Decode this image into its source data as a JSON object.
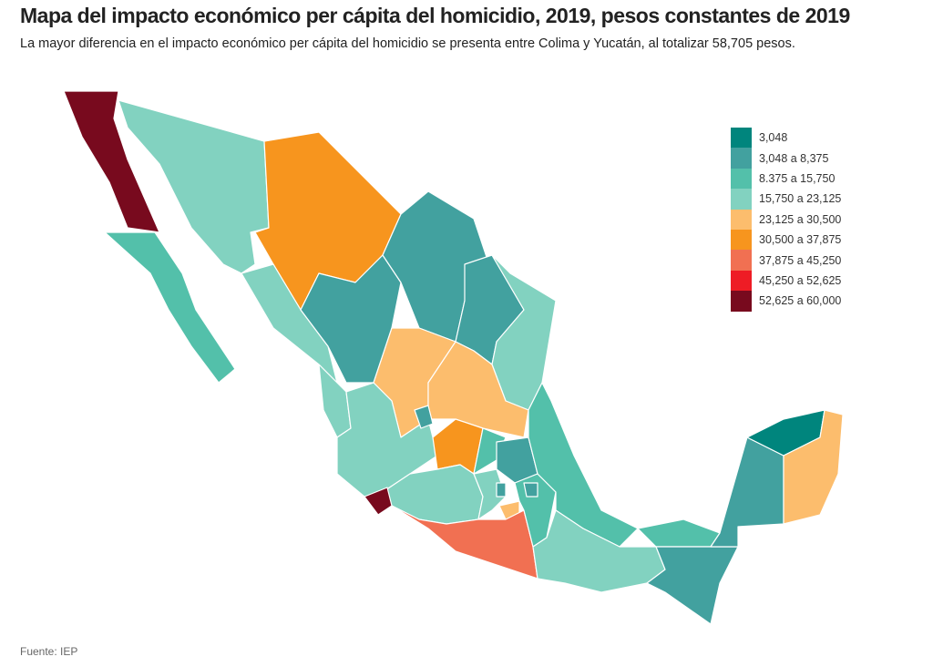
{
  "title": "Mapa del impacto económico per cápita del homicidio, 2019, pesos constantes de 2019",
  "subtitle": "La mayor diferencia en el impacto económico per cápita del homicidio se presenta entre Colima y Yucatán, al totalizar 58,705 pesos.",
  "source": "Fuente: IEP",
  "legend": [
    {
      "label": "3,048",
      "color": "#00857d"
    },
    {
      "label": "3,048 a 8,375",
      "color": "#42a19f"
    },
    {
      "label": "8.375 a 15,750",
      "color": "#53c0aa"
    },
    {
      "label": "15,750 a 23,125",
      "color": "#82d2c0"
    },
    {
      "label": "23,125 a 30,500",
      "color": "#fcbd6d"
    },
    {
      "label": "30,500 a 37,875",
      "color": "#f7951e"
    },
    {
      "label": "37,875 a 45,250",
      "color": "#f17052"
    },
    {
      "label": "45,250 a 52,625",
      "color": "#ee1c25"
    },
    {
      "label": "52,625 a 60,000",
      "color": "#780a1e"
    }
  ]
}
